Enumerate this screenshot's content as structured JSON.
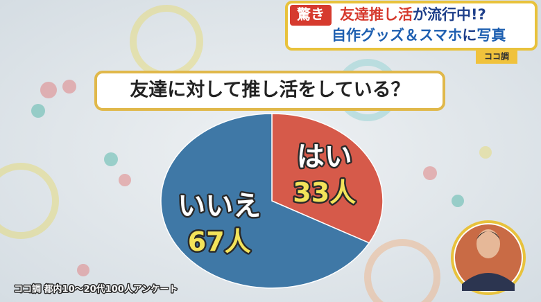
{
  "headline": {
    "badge": "驚き",
    "line1": [
      "友達推し活",
      "が流行中!?"
    ],
    "line2": [
      "自作グッズ＆スマホ",
      "に",
      "写真"
    ],
    "logo": "ココ調"
  },
  "chart_data": {
    "type": "pie",
    "title": "友達に対して推し活をしている？",
    "categories": [
      "はい",
      "いいえ"
    ],
    "values": [
      33,
      67
    ],
    "value_labels": [
      "33人",
      "67人"
    ],
    "colors": [
      "#d65a4a",
      "#3f78a6"
    ]
  },
  "source": "ココ調 都内10～20代100人アンケート"
}
